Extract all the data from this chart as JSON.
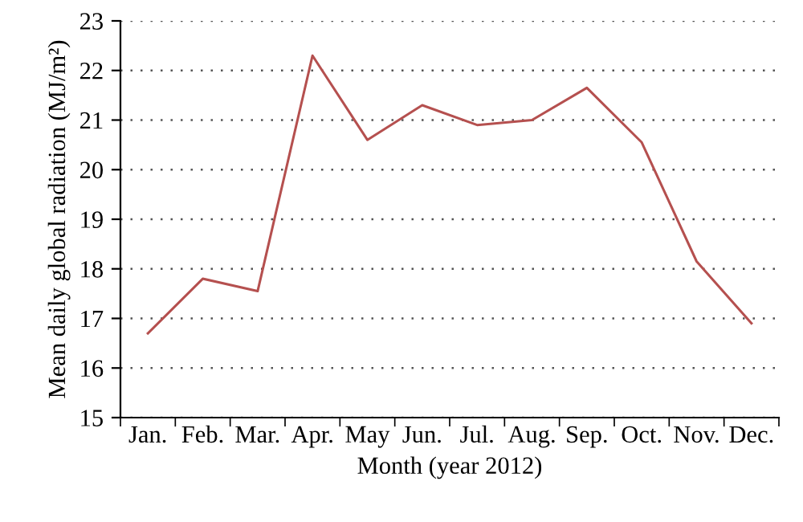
{
  "chart_data": {
    "type": "line",
    "xlabel": "Month (year 2012)",
    "ylabel": "Mean daily global radiation (MJ/m²)",
    "categories": [
      "Jan.",
      "Feb.",
      "Mar.",
      "Apr.",
      "May",
      "Jun.",
      "Jul.",
      "Aug.",
      "Sep.",
      "Oct.",
      "Nov.",
      "Dec."
    ],
    "series": [
      {
        "color": "#b5504f",
        "values": [
          16.7,
          17.8,
          17.55,
          22.3,
          20.6,
          21.3,
          20.9,
          21.0,
          21.65,
          20.55,
          18.15,
          16.9
        ]
      }
    ],
    "ylim": [
      15,
      23
    ],
    "yticks": [
      15,
      16,
      17,
      18,
      19,
      20,
      21,
      22,
      23
    ],
    "grid": "y",
    "marker": "none",
    "line_style": "solid",
    "legend": false
  }
}
